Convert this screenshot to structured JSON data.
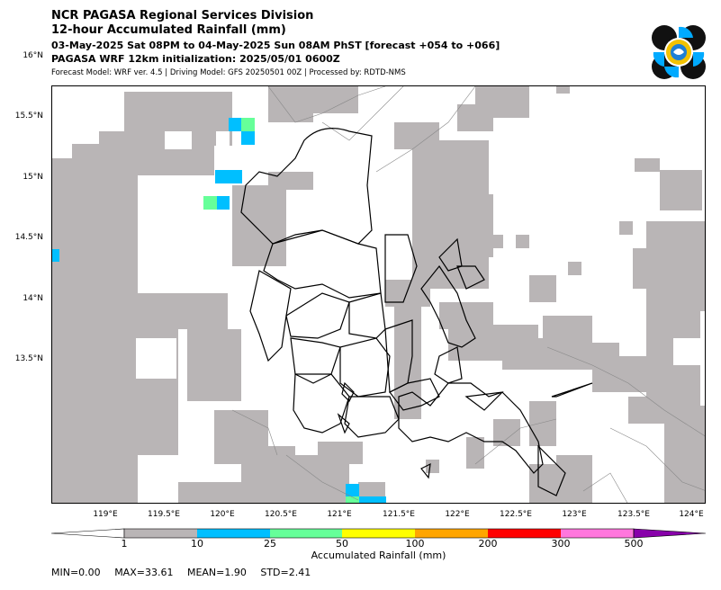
{
  "header": {
    "title_line1": "NCR PAGASA Regional Services Division",
    "title_line2": "12-hour Accumulated Rainfall (mm)",
    "period": "03-May-2025 Sat 08PM to 04-May-2025 Sun 08AM PhST [forecast +054 to +066]",
    "init": "PAGASA WRF 12km initialization: 2025/05/01 0600Z",
    "model_info": "Forecast Model: WRF ver. 4.5 | Driving Model: GFS 20250501 00Z | Processed by: RDTD-NMS"
  },
  "logo": {
    "icon": "pagasa-seal-icon"
  },
  "map": {
    "lat_labels": [
      "16°N",
      "15.5°N",
      "15°N",
      "14.5°N",
      "14°N",
      "13.5°N"
    ],
    "lon_labels": [
      "119°E",
      "119.5°E",
      "120°E",
      "120.5°E",
      "121°E",
      "121.5°E",
      "122°E",
      "122.5°E",
      "123°E",
      "123.5°E",
      "124°E"
    ],
    "colors": {
      "light_rain": "#b9b5b6",
      "rain_10_25": "#00bfff",
      "rain_25_50": "#66ff99"
    }
  },
  "colorbar": {
    "ticks": [
      "1",
      "10",
      "25",
      "50",
      "100",
      "200",
      "300",
      "500"
    ],
    "colors": [
      "#b9b5b6",
      "#00bfff",
      "#66ff99",
      "#ffff00",
      "#ffa500",
      "#ff0000",
      "#ff77dd",
      "#8800aa"
    ],
    "label": "Accumulated Rainfall (mm)"
  },
  "stats": {
    "min": "MIN=0.00",
    "max": "MAX=33.61",
    "mean": "MEAN=1.90",
    "std": "STD=2.41"
  }
}
